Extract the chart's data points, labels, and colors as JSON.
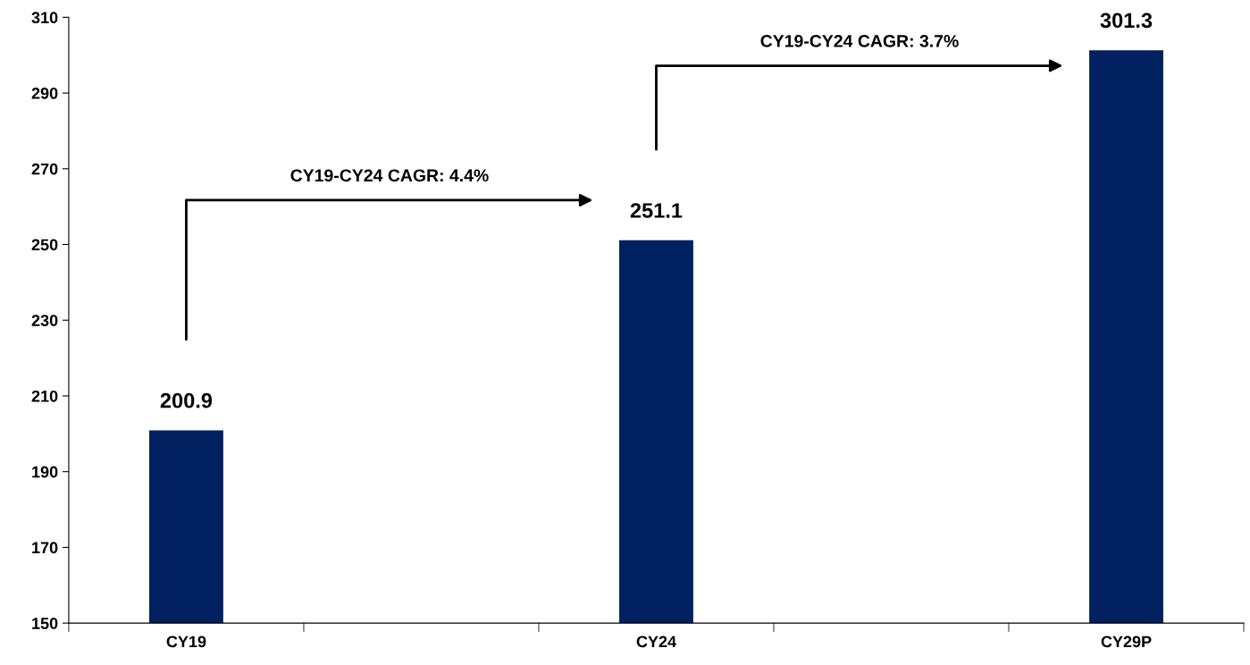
{
  "chart_data": {
    "type": "bar",
    "categories": [
      "CY19",
      null,
      "CY24",
      null,
      "CY29P"
    ],
    "values": [
      200.9,
      null,
      251.1,
      null,
      301.3
    ],
    "color": "#002060",
    "ylim": [
      150,
      310
    ],
    "yticks": [
      150,
      170,
      190,
      210,
      230,
      250,
      270,
      290,
      310
    ],
    "data_labels": true,
    "grid": false,
    "legend": false,
    "annotations": [
      "CY19-CY24 CAGR: 4.4%",
      "CY19-CY24 CAGR: 3.7%"
    ]
  }
}
